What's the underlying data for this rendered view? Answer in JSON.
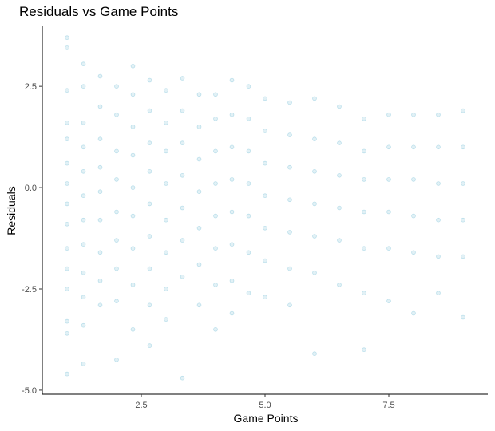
{
  "chart_data": {
    "type": "scatter",
    "title": "Residuals vs Game Points",
    "xlabel": "Game Points",
    "ylabel": "Residuals",
    "xlim": [
      0.5,
      9.5
    ],
    "ylim": [
      -5.1,
      4.0
    ],
    "xticks": [
      2.5,
      5.0,
      7.5
    ],
    "xtick_labels": [
      "2.5",
      "5.0",
      "7.5"
    ],
    "yticks": [
      2.5,
      0.0,
      -2.5,
      -5.0
    ],
    "ytick_labels": [
      "2.5",
      "0.0",
      "-2.5",
      "-5.0"
    ],
    "grid": false,
    "legend": "none",
    "point_color": "#add8e6",
    "point_alpha": 0.35,
    "series": [
      {
        "points": [
          [
            1.0,
            3.7
          ],
          [
            1.0,
            3.45
          ],
          [
            1.0,
            2.4
          ],
          [
            1.0,
            1.6
          ],
          [
            1.0,
            1.2
          ],
          [
            1.0,
            0.6
          ],
          [
            1.0,
            0.1
          ],
          [
            1.0,
            -0.4
          ],
          [
            1.0,
            -0.9
          ],
          [
            1.0,
            -1.5
          ],
          [
            1.0,
            -2.0
          ],
          [
            1.0,
            -2.5
          ],
          [
            1.0,
            -3.3
          ],
          [
            1.0,
            -3.6
          ],
          [
            1.0,
            -4.6
          ],
          [
            1.33,
            3.05
          ],
          [
            1.33,
            2.5
          ],
          [
            1.33,
            1.6
          ],
          [
            1.33,
            1.0
          ],
          [
            1.33,
            0.4
          ],
          [
            1.33,
            -0.2
          ],
          [
            1.33,
            -0.8
          ],
          [
            1.33,
            -1.4
          ],
          [
            1.33,
            -2.1
          ],
          [
            1.33,
            -2.7
          ],
          [
            1.33,
            -3.4
          ],
          [
            1.33,
            -4.35
          ],
          [
            1.67,
            2.75
          ],
          [
            1.67,
            2.0
          ],
          [
            1.67,
            1.2
          ],
          [
            1.67,
            0.5
          ],
          [
            1.67,
            -0.1
          ],
          [
            1.67,
            -0.8
          ],
          [
            1.67,
            -1.6
          ],
          [
            1.67,
            -2.3
          ],
          [
            1.67,
            -2.9
          ],
          [
            2.0,
            2.5
          ],
          [
            2.0,
            1.8
          ],
          [
            2.0,
            0.9
          ],
          [
            2.0,
            0.2
          ],
          [
            2.0,
            -0.6
          ],
          [
            2.0,
            -1.3
          ],
          [
            2.0,
            -2.0
          ],
          [
            2.0,
            -2.8
          ],
          [
            2.0,
            -4.25
          ],
          [
            2.33,
            3.0
          ],
          [
            2.33,
            2.3
          ],
          [
            2.33,
            1.5
          ],
          [
            2.33,
            0.8
          ],
          [
            2.33,
            0.0
          ],
          [
            2.33,
            -0.7
          ],
          [
            2.33,
            -1.5
          ],
          [
            2.33,
            -2.4
          ],
          [
            2.33,
            -3.5
          ],
          [
            2.67,
            2.65
          ],
          [
            2.67,
            1.9
          ],
          [
            2.67,
            1.1
          ],
          [
            2.67,
            0.4
          ],
          [
            2.67,
            -0.4
          ],
          [
            2.67,
            -1.2
          ],
          [
            2.67,
            -2.0
          ],
          [
            2.67,
            -2.9
          ],
          [
            2.67,
            -3.9
          ],
          [
            3.0,
            2.4
          ],
          [
            3.0,
            1.6
          ],
          [
            3.0,
            0.9
          ],
          [
            3.0,
            0.1
          ],
          [
            3.0,
            -0.8
          ],
          [
            3.0,
            -1.6
          ],
          [
            3.0,
            -2.5
          ],
          [
            3.0,
            -3.25
          ],
          [
            3.33,
            2.7
          ],
          [
            3.33,
            1.9
          ],
          [
            3.33,
            1.1
          ],
          [
            3.33,
            0.3
          ],
          [
            3.33,
            -0.5
          ],
          [
            3.33,
            -1.3
          ],
          [
            3.33,
            -2.2
          ],
          [
            3.33,
            -4.7
          ],
          [
            3.67,
            2.3
          ],
          [
            3.67,
            1.5
          ],
          [
            3.67,
            0.7
          ],
          [
            3.67,
            -0.1
          ],
          [
            3.67,
            -1.0
          ],
          [
            3.67,
            -1.9
          ],
          [
            3.67,
            -2.9
          ],
          [
            4.0,
            2.3
          ],
          [
            4.0,
            1.7
          ],
          [
            4.0,
            0.9
          ],
          [
            4.0,
            0.1
          ],
          [
            4.0,
            -0.7
          ],
          [
            4.0,
            -1.5
          ],
          [
            4.0,
            -2.4
          ],
          [
            4.0,
            -3.5
          ],
          [
            4.33,
            2.65
          ],
          [
            4.33,
            1.8
          ],
          [
            4.33,
            1.0
          ],
          [
            4.33,
            0.2
          ],
          [
            4.33,
            -0.6
          ],
          [
            4.33,
            -1.4
          ],
          [
            4.33,
            -2.3
          ],
          [
            4.33,
            -3.1
          ],
          [
            4.67,
            2.5
          ],
          [
            4.67,
            1.7
          ],
          [
            4.67,
            0.9
          ],
          [
            4.67,
            0.1
          ],
          [
            4.67,
            -0.7
          ],
          [
            4.67,
            -1.6
          ],
          [
            4.67,
            -2.6
          ],
          [
            5.0,
            2.2
          ],
          [
            5.0,
            1.4
          ],
          [
            5.0,
            0.6
          ],
          [
            5.0,
            -0.2
          ],
          [
            5.0,
            -1.0
          ],
          [
            5.0,
            -1.8
          ],
          [
            5.0,
            -2.7
          ],
          [
            5.5,
            2.1
          ],
          [
            5.5,
            1.3
          ],
          [
            5.5,
            0.5
          ],
          [
            5.5,
            -0.3
          ],
          [
            5.5,
            -1.1
          ],
          [
            5.5,
            -2.0
          ],
          [
            5.5,
            -2.9
          ],
          [
            6.0,
            2.2
          ],
          [
            6.0,
            1.2
          ],
          [
            6.0,
            0.4
          ],
          [
            6.0,
            -0.4
          ],
          [
            6.0,
            -1.2
          ],
          [
            6.0,
            -2.1
          ],
          [
            6.0,
            -4.1
          ],
          [
            6.5,
            2.0
          ],
          [
            6.5,
            1.1
          ],
          [
            6.5,
            0.3
          ],
          [
            6.5,
            -0.5
          ],
          [
            6.5,
            -1.3
          ],
          [
            6.5,
            -2.4
          ],
          [
            7.0,
            1.7
          ],
          [
            7.0,
            0.9
          ],
          [
            7.0,
            0.2
          ],
          [
            7.0,
            -0.6
          ],
          [
            7.0,
            -1.5
          ],
          [
            7.0,
            -2.6
          ],
          [
            7.0,
            -4.0
          ],
          [
            7.5,
            1.8
          ],
          [
            7.5,
            1.0
          ],
          [
            7.5,
            0.2
          ],
          [
            7.5,
            -0.6
          ],
          [
            7.5,
            -1.5
          ],
          [
            7.5,
            -2.8
          ],
          [
            8.0,
            1.8
          ],
          [
            8.0,
            1.0
          ],
          [
            8.0,
            0.2
          ],
          [
            8.0,
            -0.7
          ],
          [
            8.0,
            -1.6
          ],
          [
            8.0,
            -3.1
          ],
          [
            8.5,
            1.8
          ],
          [
            8.5,
            1.0
          ],
          [
            8.5,
            0.1
          ],
          [
            8.5,
            -0.8
          ],
          [
            8.5,
            -1.7
          ],
          [
            8.5,
            -2.6
          ],
          [
            9.0,
            1.9
          ],
          [
            9.0,
            1.0
          ],
          [
            9.0,
            0.1
          ],
          [
            9.0,
            -0.8
          ],
          [
            9.0,
            -1.7
          ],
          [
            9.0,
            -3.2
          ]
        ]
      }
    ]
  }
}
